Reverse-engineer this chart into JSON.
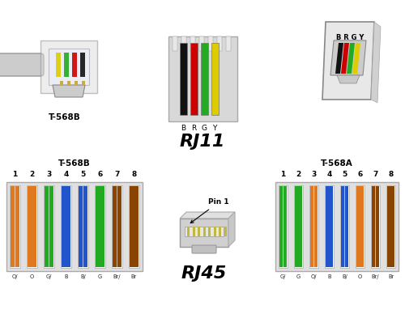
{
  "rj11_label": "RJ11",
  "rj45_label": "RJ45",
  "t568b_label": "T-568B",
  "t568a_label": "T-568A",
  "rj11_wires": [
    "#111111",
    "#cc0000",
    "#22aa22",
    "#ddcc00"
  ],
  "rj11_wire_labels": [
    "B",
    "R",
    "G",
    "Y"
  ],
  "t568b_pins": [
    "1",
    "2",
    "3",
    "4",
    "5",
    "6",
    "7",
    "8"
  ],
  "t568b_labels": [
    "O/",
    "O",
    "G/",
    "B",
    "B/",
    "G",
    "Br/",
    "Br"
  ],
  "t568b_colors": [
    [
      "stripe",
      "#e07820"
    ],
    [
      "solid",
      "#e07820"
    ],
    [
      "stripe",
      "#22aa22"
    ],
    [
      "solid",
      "#2255cc"
    ],
    [
      "stripe",
      "#2255cc"
    ],
    [
      "solid",
      "#22aa22"
    ],
    [
      "stripe",
      "#884400"
    ],
    [
      "solid",
      "#884400"
    ]
  ],
  "t568a_pins": [
    "1",
    "2",
    "3",
    "4",
    "5",
    "6",
    "7",
    "8"
  ],
  "t568a_labels": [
    "G/",
    "G",
    "O/",
    "B",
    "B/",
    "O",
    "Br/",
    "Br"
  ],
  "t568a_colors": [
    [
      "stripe",
      "#22aa22"
    ],
    [
      "solid",
      "#22aa22"
    ],
    [
      "stripe",
      "#e07820"
    ],
    [
      "solid",
      "#2255cc"
    ],
    [
      "stripe",
      "#2255cc"
    ],
    [
      "solid",
      "#e07820"
    ],
    [
      "stripe",
      "#884400"
    ],
    [
      "solid",
      "#884400"
    ]
  ],
  "bg_color": "#f5f5f5",
  "border_color": "#cccccc"
}
